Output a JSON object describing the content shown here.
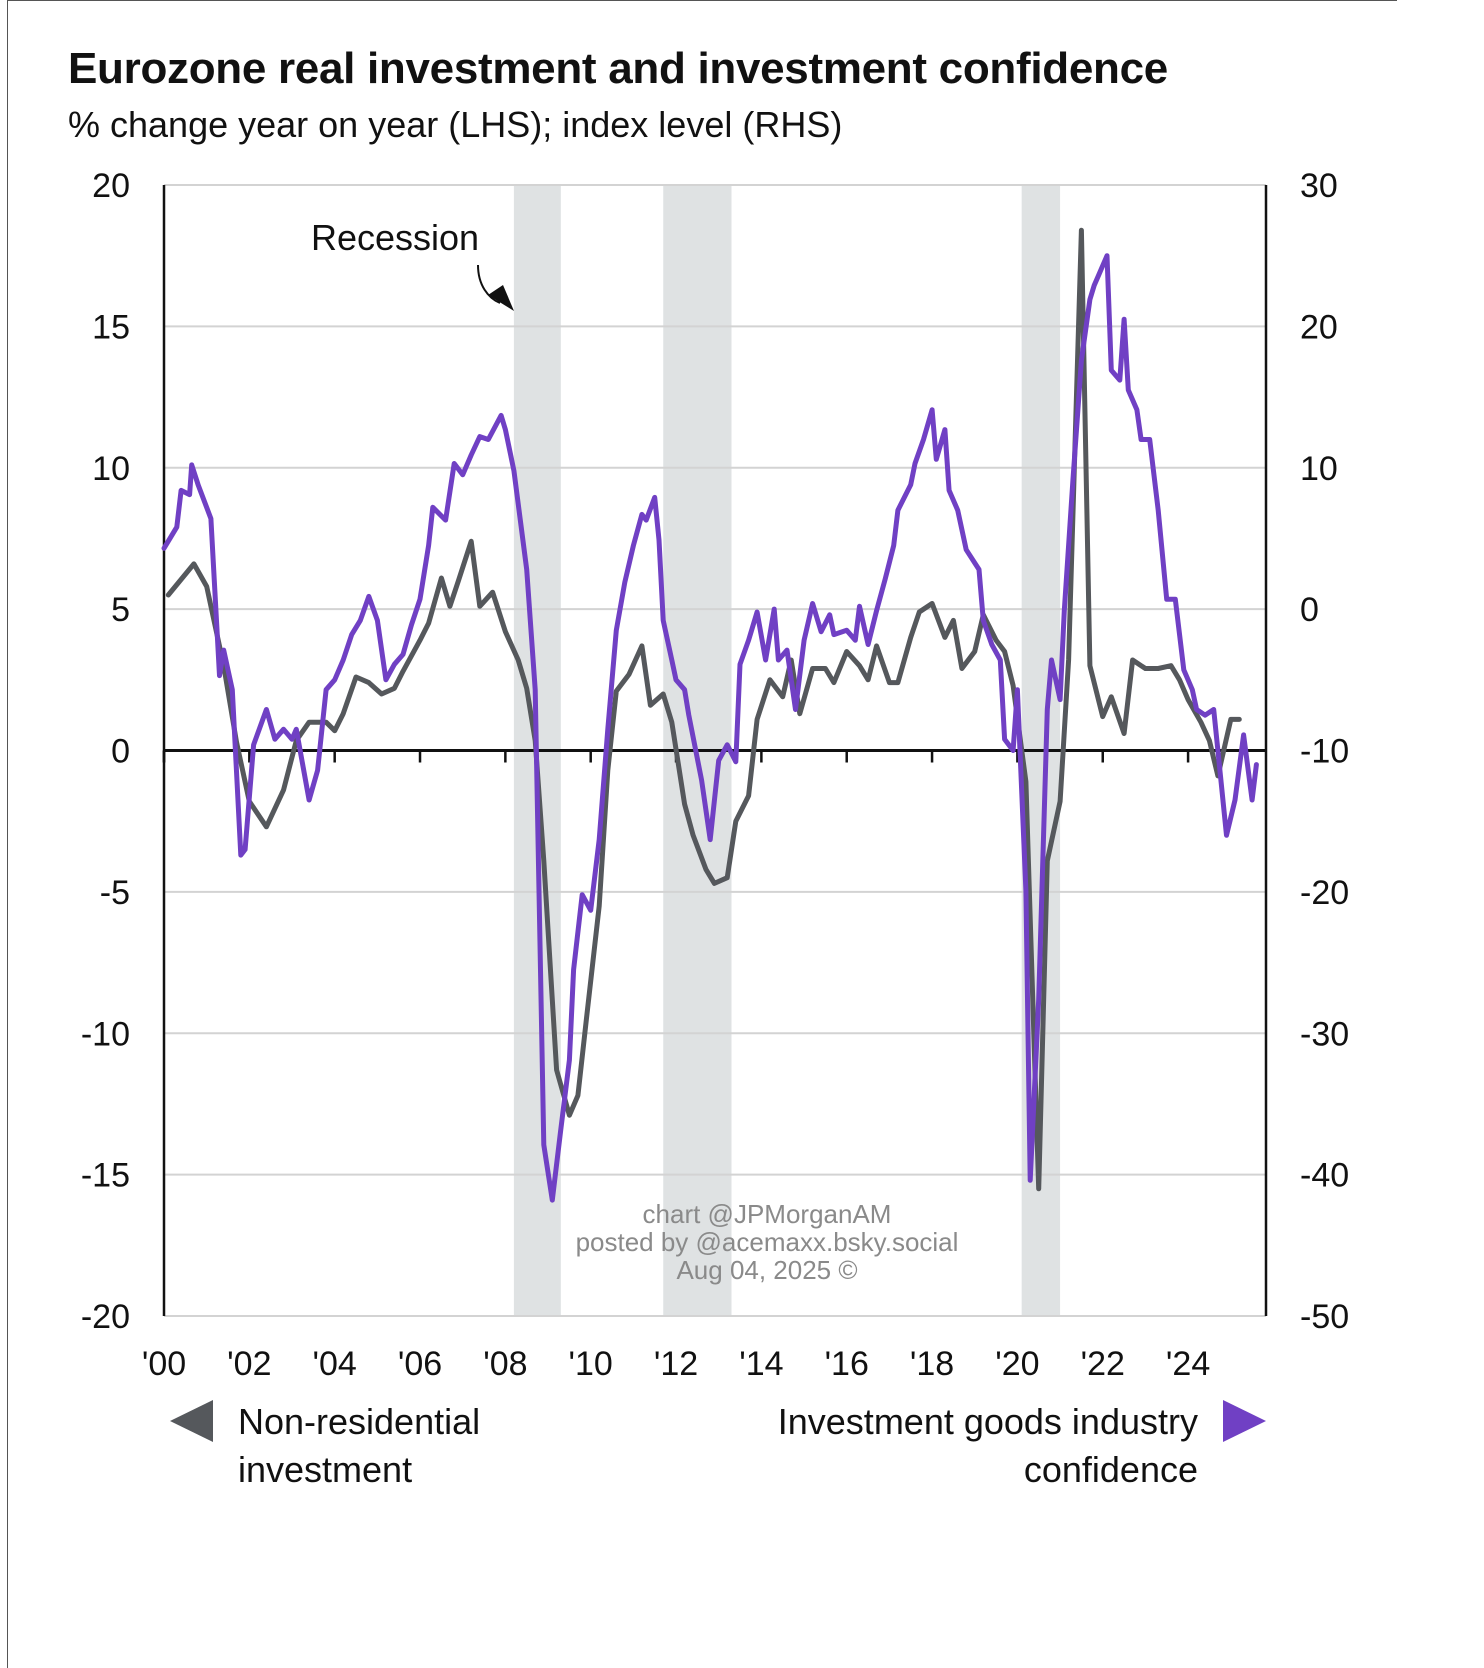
{
  "chart_data": {
    "type": "line",
    "title": "Eurozone real investment and investment confidence",
    "subtitle": "% change year on year (LHS); index level (RHS)",
    "xlabel": "",
    "ylabel_left": "% change year on year",
    "ylabel_right": "index level",
    "xlim": [
      2000,
      2025.9
    ],
    "ylim_left": [
      -20,
      20
    ],
    "ylim_right": [
      -50,
      30
    ],
    "left_ticks": [
      "20",
      "15",
      "10",
      "5",
      "0",
      "-5",
      "-10",
      "-15",
      "-20"
    ],
    "left_tick_values": [
      20,
      15,
      10,
      5,
      0,
      -5,
      -10,
      -15,
      -20
    ],
    "right_ticks": [
      "30",
      "20",
      "10",
      "0",
      "-10",
      "-20",
      "-30",
      "-40",
      "-50"
    ],
    "right_tick_values": [
      30,
      20,
      10,
      0,
      -10,
      -20,
      -30,
      -40,
      -50
    ],
    "x_ticks": [
      "'00",
      "'02",
      "'04",
      "'06",
      "'08",
      "'10",
      "'12",
      "'14",
      "'16",
      "'18",
      "'20",
      "'22",
      "'24"
    ],
    "x_tick_values": [
      2000,
      2002,
      2004,
      2006,
      2008,
      2010,
      2012,
      2014,
      2016,
      2018,
      2020,
      2022,
      2024
    ],
    "grid": true,
    "recessions": [
      [
        2008.2,
        2009.3
      ],
      [
        2011.7,
        2013.3
      ],
      [
        2020.1,
        2021.0
      ]
    ],
    "annotation": "Recession",
    "watermark": [
      "chart @JPMorganAM",
      "posted by @acemaxx.bsky.social",
      "Aug 04, 2025 ©"
    ],
    "series": [
      {
        "name": "Non-residential investment",
        "legend": [
          "Non-residential",
          "investment"
        ],
        "axis": "left",
        "color": "#55585c",
        "x": [
          2000.1,
          2000.7,
          2001.0,
          2001.4,
          2001.7,
          2002.0,
          2002.4,
          2002.8,
          2003.1,
          2003.4,
          2003.8,
          2004.0,
          2004.2,
          2004.5,
          2004.8,
          2005.1,
          2005.4,
          2005.6,
          2006.0,
          2006.2,
          2006.5,
          2006.7,
          2006.9,
          2007.2,
          2007.4,
          2007.7,
          2008.0,
          2008.3,
          2008.5,
          2008.7,
          2008.9,
          2009.2,
          2009.5,
          2009.7,
          2009.9,
          2010.2,
          2010.4,
          2010.6,
          2010.9,
          2011.2,
          2011.4,
          2011.7,
          2011.9,
          2012.2,
          2012.4,
          2012.7,
          2012.9,
          2013.2,
          2013.4,
          2013.7,
          2013.9,
          2014.2,
          2014.5,
          2014.7,
          2014.9,
          2015.2,
          2015.5,
          2015.7,
          2016.0,
          2016.3,
          2016.5,
          2016.7,
          2017.0,
          2017.2,
          2017.5,
          2017.7,
          2018.0,
          2018.3,
          2018.5,
          2018.7,
          2019.0,
          2019.2,
          2019.5,
          2019.7,
          2019.9,
          2020.2,
          2020.5,
          2020.7,
          2021.0,
          2021.2,
          2021.5,
          2021.7,
          2022.0,
          2022.2,
          2022.5,
          2022.7,
          2023.0,
          2023.3,
          2023.6,
          2023.8,
          2024.0,
          2024.3,
          2024.5,
          2024.7,
          2025.0,
          2025.2
        ],
        "values": [
          5.5,
          6.6,
          5.8,
          3.0,
          0.3,
          -1.8,
          -2.7,
          -1.4,
          0.35,
          1.0,
          1.0,
          0.7,
          1.3,
          2.6,
          2.4,
          2.0,
          2.2,
          2.8,
          3.9,
          4.5,
          6.1,
          5.1,
          6.0,
          7.4,
          5.1,
          5.6,
          4.2,
          3.2,
          2.2,
          0.35,
          -3.9,
          -11.3,
          -12.9,
          -12.2,
          -9.5,
          -5.5,
          -0.7,
          2.1,
          2.7,
          3.7,
          1.6,
          2.0,
          1.0,
          -1.9,
          -3.0,
          -4.2,
          -4.7,
          -4.5,
          -2.5,
          -1.6,
          1.1,
          2.5,
          1.9,
          3.2,
          1.3,
          2.9,
          2.9,
          2.4,
          3.5,
          3.0,
          2.5,
          3.7,
          2.4,
          2.4,
          4.0,
          4.9,
          5.2,
          4.0,
          4.6,
          2.9,
          3.5,
          4.8,
          3.9,
          3.5,
          2.3,
          -1.1,
          -15.5,
          -3.9,
          -1.8,
          3.2,
          18.4,
          3.0,
          1.2,
          1.9,
          0.6,
          3.2,
          2.9,
          2.9,
          3.0,
          2.5,
          1.8,
          1.0,
          0.35,
          -0.9,
          1.1,
          1.1
        ]
      },
      {
        "name": "Investment goods industry confidence",
        "legend": [
          "Investment goods industry",
          "confidence"
        ],
        "axis": "right",
        "color": "#7040c4",
        "x": [
          2000.0,
          2000.3,
          2000.4,
          2000.6,
          2000.65,
          2000.8,
          2001.1,
          2001.3,
          2001.4,
          2001.6,
          2001.8,
          2001.9,
          2002.1,
          2002.4,
          2002.6,
          2002.8,
          2003.0,
          2003.1,
          2003.4,
          2003.6,
          2003.8,
          2004.0,
          2004.2,
          2004.4,
          2004.6,
          2004.8,
          2005.0,
          2005.2,
          2005.4,
          2005.6,
          2005.8,
          2006.0,
          2006.2,
          2006.3,
          2006.6,
          2006.8,
          2007.0,
          2007.2,
          2007.4,
          2007.6,
          2007.9,
          2008.0,
          2008.2,
          2008.5,
          2008.7,
          2008.9,
          2009.1,
          2009.3,
          2009.5,
          2009.6,
          2009.8,
          2010.0,
          2010.2,
          2010.4,
          2010.6,
          2010.8,
          2011.0,
          2011.2,
          2011.3,
          2011.5,
          2011.6,
          2011.7,
          2011.9,
          2012.0,
          2012.2,
          2012.3,
          2012.6,
          2012.8,
          2013.0,
          2013.2,
          2013.4,
          2013.5,
          2013.7,
          2013.9,
          2014.1,
          2014.3,
          2014.4,
          2014.6,
          2014.8,
          2015.0,
          2015.2,
          2015.4,
          2015.6,
          2015.7,
          2016.0,
          2016.2,
          2016.3,
          2016.5,
          2016.7,
          2016.9,
          2017.1,
          2017.2,
          2017.5,
          2017.6,
          2017.8,
          2018.0,
          2018.1,
          2018.3,
          2018.4,
          2018.6,
          2018.8,
          2019.1,
          2019.2,
          2019.4,
          2019.6,
          2019.7,
          2019.9,
          2020.0,
          2020.2,
          2020.3,
          2020.5,
          2020.7,
          2020.8,
          2021.0,
          2021.1,
          2021.3,
          2021.5,
          2021.7,
          2021.8,
          2021.9,
          2022.1,
          2022.2,
          2022.4,
          2022.5,
          2022.6,
          2022.8,
          2022.9,
          2023.1,
          2023.3,
          2023.5,
          2023.7,
          2023.9,
          2024.1,
          2024.2,
          2024.4,
          2024.6,
          2024.7,
          2024.9,
          2025.1,
          2025.3,
          2025.5,
          2025.6
        ],
        "values": [
          4.3,
          5.8,
          8.4,
          8.1,
          10.2,
          8.8,
          6.4,
          -4.7,
          -2.9,
          -5.7,
          -17.4,
          -17.0,
          -9.6,
          -7.1,
          -9.2,
          -8.5,
          -9.2,
          -8.5,
          -13.5,
          -11.4,
          -5.7,
          -5.0,
          -3.6,
          -1.8,
          -0.8,
          0.9,
          -0.8,
          -5.0,
          -3.9,
          -3.2,
          -1.1,
          0.7,
          4.5,
          7.2,
          6.3,
          10.3,
          9.5,
          10.9,
          12.2,
          12.0,
          13.7,
          12.7,
          9.8,
          2.8,
          -5.7,
          -37.9,
          -41.8,
          -36.8,
          -31.9,
          -25.5,
          -20.2,
          -21.3,
          -16.3,
          -8.5,
          -1.5,
          1.9,
          4.5,
          6.7,
          6.3,
          7.9,
          4.9,
          -0.8,
          -3.6,
          -5.0,
          -5.7,
          -7.5,
          -12.1,
          -16.3,
          -10.7,
          -9.6,
          -10.8,
          -3.9,
          -2.2,
          -0.2,
          -3.6,
          0.0,
          -3.6,
          -2.9,
          -7.1,
          -2.2,
          0.4,
          -1.6,
          -0.4,
          -1.8,
          -1.5,
          -2.2,
          0.2,
          -2.5,
          -0.1,
          2.1,
          4.5,
          7.0,
          8.8,
          10.3,
          12.0,
          14.1,
          10.6,
          12.7,
          8.4,
          7.0,
          4.2,
          2.8,
          -0.8,
          -2.5,
          -3.6,
          -9.2,
          -10.0,
          -5.7,
          -19.9,
          -40.4,
          -27.6,
          -7.1,
          -3.6,
          -6.4,
          -0.1,
          9.1,
          17.6,
          21.9,
          22.9,
          23.6,
          25.0,
          16.9,
          16.2,
          20.5,
          15.5,
          14.1,
          12.0,
          12.0,
          7.0,
          0.7,
          0.7,
          -4.3,
          -5.7,
          -7.1,
          -7.5,
          -7.1,
          -10.0,
          -16.0,
          -13.5,
          -8.9,
          -13.5,
          -11.0
        ]
      }
    ]
  }
}
